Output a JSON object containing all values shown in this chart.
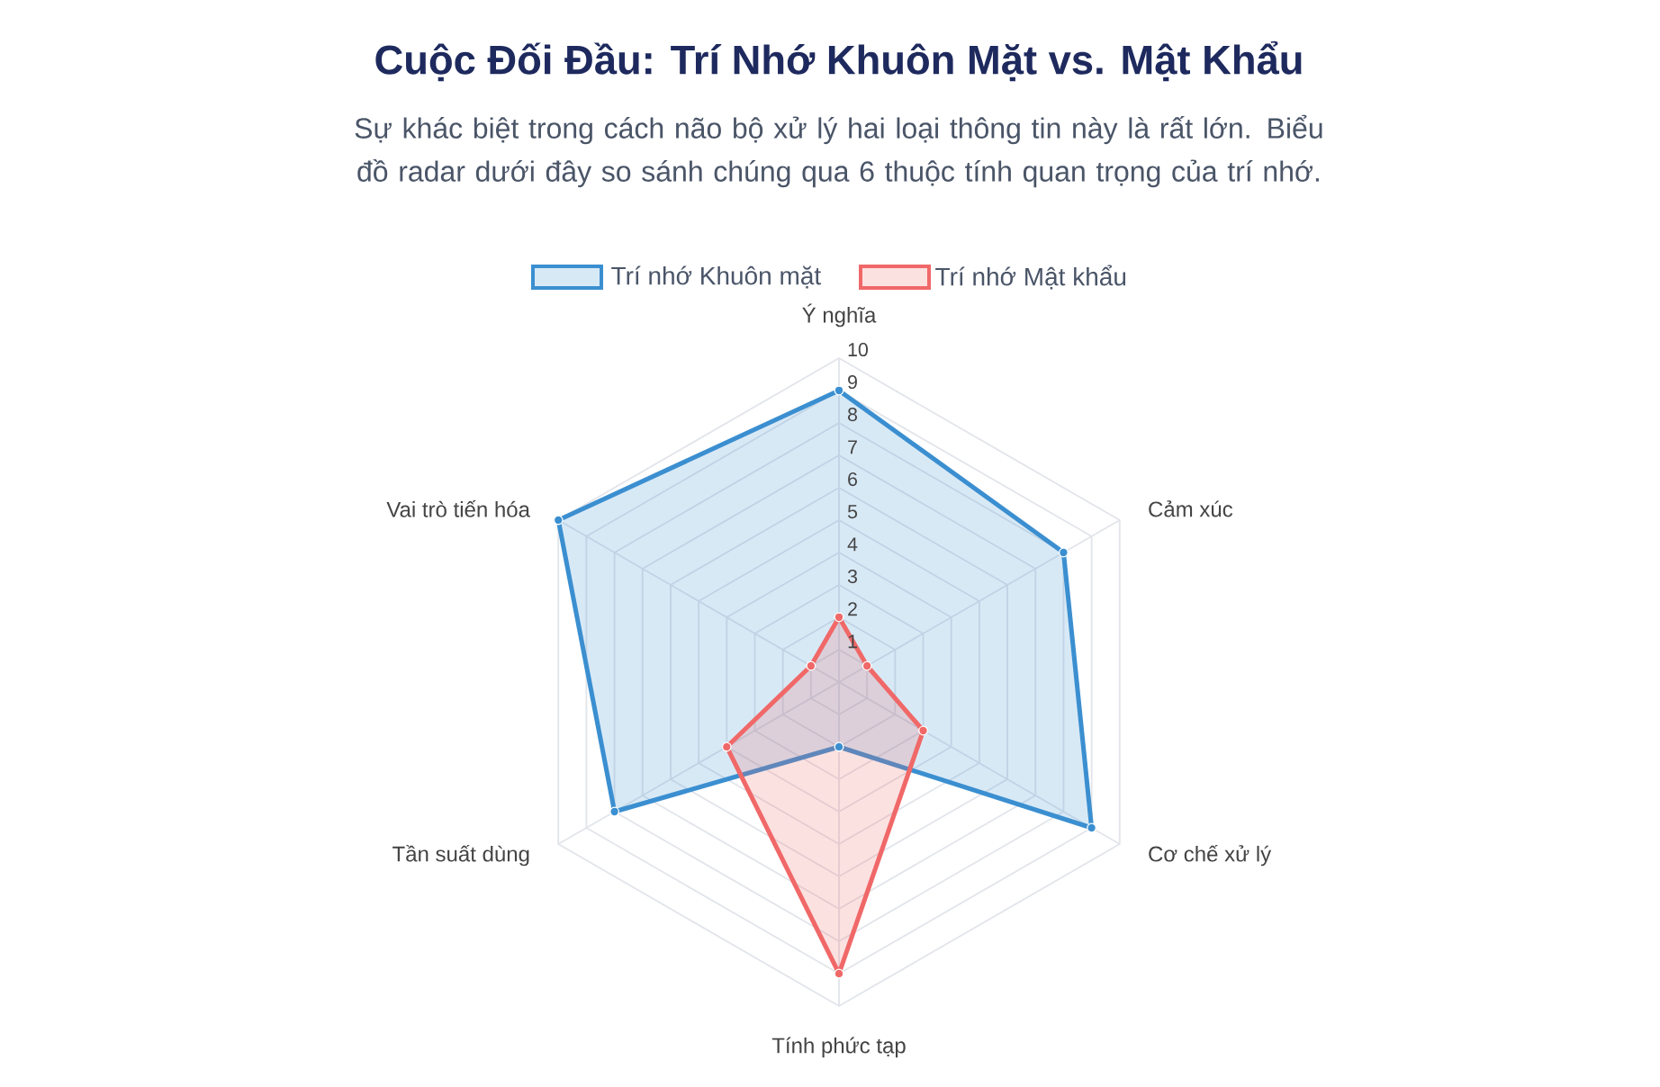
{
  "chart_data": {
    "type": "radar",
    "title": "Cuộc Đối Đầu: Trí Nhớ Khuôn Mặt vs. Mật Khẩu",
    "subtitle": "Sự khác biệt trong cách não bộ xử lý hai loại thông tin này là rất lớn. Biểu đồ radar dưới đây so sánh chúng qua 6 thuộc tính quan trọng của trí nhớ.",
    "categories": [
      "Ý nghĩa",
      "Cảm xúc",
      "Cơ chế xử lý",
      "Tính phức tạp",
      "Tần suất dùng",
      "Vai trò tiến hóa"
    ],
    "series": [
      {
        "name": "Trí nhớ Khuôn mặt",
        "color": "#3b8fd0",
        "values": [
          9,
          8,
          9,
          2,
          8,
          10
        ]
      },
      {
        "name": "Trí nhớ Mật khẩu",
        "color": "#f06868",
        "values": [
          2,
          1,
          3,
          9,
          4,
          1
        ]
      }
    ],
    "ylim": [
      0,
      10
    ],
    "yticks": [
      1,
      2,
      3,
      4,
      5,
      6,
      7,
      8,
      9,
      10
    ],
    "grid": true,
    "legend": "top",
    "marker": "circle"
  }
}
